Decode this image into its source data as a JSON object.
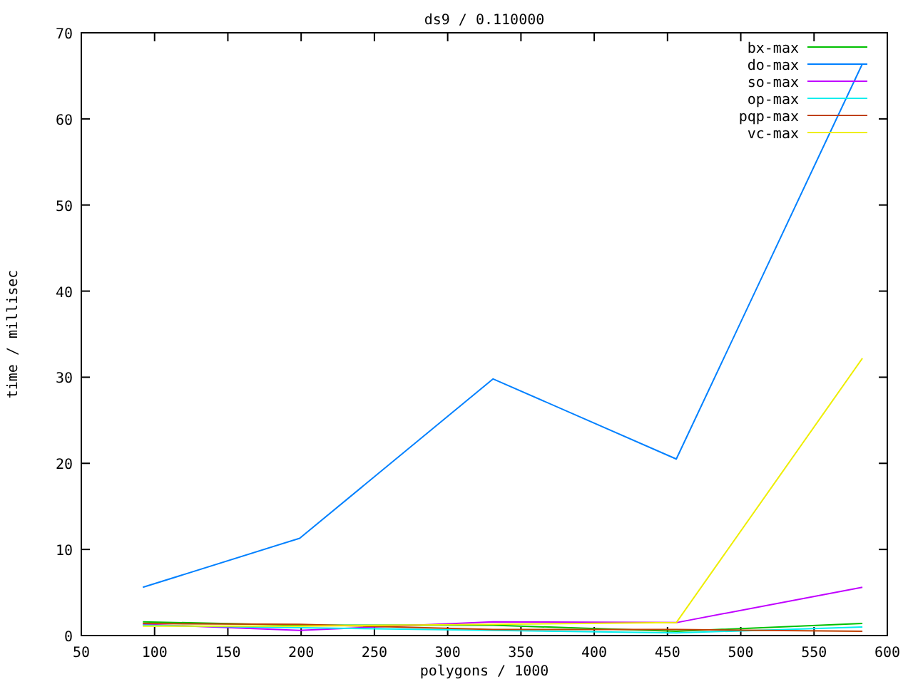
{
  "chart_data": {
    "type": "line",
    "title": "ds9 / 0.110000",
    "xlabel": "polygons / 1000",
    "ylabel": "time / millisec",
    "x": [
      92,
      199,
      331,
      456,
      583
    ],
    "series": [
      {
        "name": "bx-max",
        "color": "#00c000",
        "values": [
          1.6,
          1.2,
          1.2,
          0.5,
          1.4
        ]
      },
      {
        "name": "do-max",
        "color": "#0080ff",
        "values": [
          5.6,
          11.3,
          29.8,
          20.5,
          66.4
        ]
      },
      {
        "name": "so-max",
        "color": "#c000ff",
        "values": [
          1.3,
          0.6,
          1.6,
          1.5,
          5.6
        ]
      },
      {
        "name": "op-max",
        "color": "#00eeee",
        "values": [
          1.2,
          0.9,
          0.6,
          0.3,
          1.0
        ]
      },
      {
        "name": "pqp-max",
        "color": "#c04000",
        "values": [
          1.4,
          1.3,
          0.7,
          0.7,
          0.5
        ]
      },
      {
        "name": "vc-max",
        "color": "#eeee00",
        "values": [
          1.1,
          1.1,
          1.3,
          1.5,
          32.2
        ]
      }
    ],
    "xlim": [
      50,
      600
    ],
    "xticks": [
      50,
      100,
      150,
      200,
      250,
      300,
      350,
      400,
      450,
      500,
      550,
      600
    ],
    "ylim": [
      0,
      70
    ],
    "yticks": [
      0,
      10,
      20,
      30,
      40,
      50,
      60,
      70
    ],
    "grid": false,
    "legend": "top right",
    "marker": "none",
    "line_style": "solid"
  }
}
